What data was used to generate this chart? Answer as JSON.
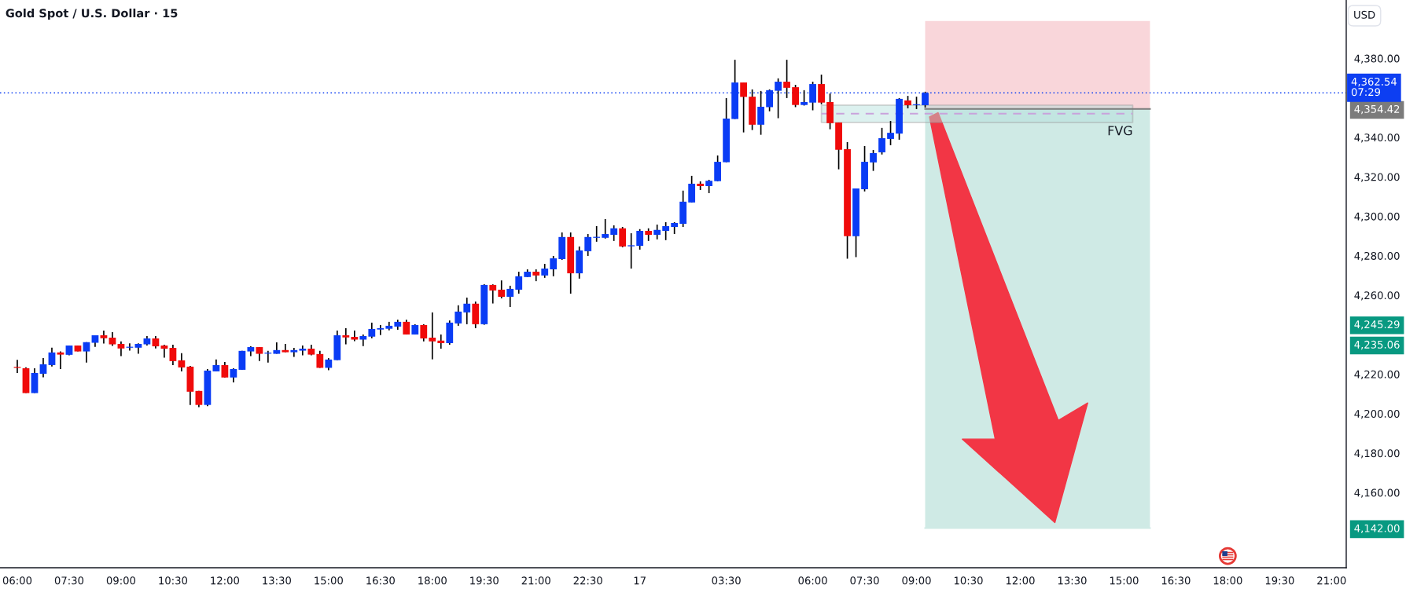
{
  "chart_data": {
    "type": "candlestick",
    "title": "Gold Spot / U.S. Dollar · 15",
    "ylabel": "USD",
    "categories": [
      "06:00",
      null,
      null,
      null,
      null,
      null,
      "07:30",
      null,
      null,
      null,
      null,
      null,
      "09:00",
      null,
      null,
      null,
      null,
      null,
      "10:30",
      null,
      null,
      null,
      null,
      null,
      "12:00",
      null,
      null,
      null,
      null,
      null,
      "13:30",
      null,
      null,
      null,
      null,
      null,
      "15:00",
      null,
      null,
      null,
      null,
      null,
      "16:30",
      null,
      null,
      null,
      null,
      null,
      "18:00",
      null,
      null,
      null,
      null,
      null,
      "19:30",
      null,
      null,
      null,
      null,
      null,
      "21:00",
      null,
      null,
      null,
      null,
      null,
      "22:30",
      null,
      null,
      null,
      null,
      null,
      "17",
      null,
      null,
      null,
      null,
      null,
      null,
      null,
      null,
      null,
      "03:30",
      null,
      null,
      null,
      null,
      null,
      null,
      null,
      null,
      null,
      "06:00",
      null,
      null,
      null,
      null,
      null,
      "07:30",
      null,
      null,
      null,
      null,
      null,
      "09:00",
      null,
      null,
      null,
      null,
      null,
      "10:30",
      null,
      null,
      null,
      null,
      null,
      "12:00",
      null,
      null,
      null,
      null,
      null,
      "13:30",
      null,
      null,
      null,
      null,
      null,
      "15:00",
      null,
      null,
      null,
      null,
      null,
      "16:30",
      null,
      null,
      null,
      null,
      null,
      "18:00",
      null,
      null,
      null,
      null,
      null,
      "19:30",
      null,
      null,
      null,
      null,
      null,
      "21:00",
      null
    ],
    "ohlc": [
      [
        4223.4,
        4227.3,
        4220.6,
        4223.2
      ],
      [
        4223.0,
        4223.5,
        4210.4,
        4210.4
      ],
      [
        4210.4,
        4223.0,
        4210.4,
        4220.6
      ],
      [
        4220.2,
        4228.1,
        4218.4,
        4225.0
      ],
      [
        4224.6,
        4233.4,
        4223.9,
        4231.0
      ],
      [
        4231.0,
        4231.5,
        4222.6,
        4229.9
      ],
      [
        4229.8,
        4234.5,
        4229.5,
        4234.5
      ],
      [
        4234.5,
        4234.5,
        4231.5,
        4231.5
      ],
      [
        4231.5,
        4236.2,
        4225.9,
        4236.2
      ],
      [
        4235.9,
        4239.7,
        4233.8,
        4239.7
      ],
      [
        4239.7,
        4242.1,
        4235.5,
        4238.2
      ],
      [
        4238.5,
        4241.3,
        4234.3,
        4235.1
      ],
      [
        4235.3,
        4236.6,
        4229.1,
        4233.0
      ],
      [
        4233.4,
        4235.6,
        4231.9,
        4233.7
      ],
      [
        4233.4,
        4235.6,
        4230.3,
        4235.3
      ],
      [
        4235.1,
        4239.3,
        4234.5,
        4238.1
      ],
      [
        4238.1,
        4239.3,
        4233.0,
        4234.1
      ],
      [
        4234.5,
        4234.9,
        4228.3,
        4232.9
      ],
      [
        4233.3,
        4234.9,
        4224.6,
        4226.6
      ],
      [
        4227.0,
        4230.6,
        4221.4,
        4223.4
      ],
      [
        4223.8,
        4224.2,
        4204.4,
        4211.1
      ],
      [
        4211.5,
        4211.5,
        4203.3,
        4204.4
      ],
      [
        4204.4,
        4222.6,
        4203.8,
        4221.8
      ],
      [
        4221.4,
        4227.4,
        4221.4,
        4224.6
      ],
      [
        4224.6,
        4226.2,
        4218.3,
        4218.3
      ],
      [
        4218.3,
        4223.0,
        4215.8,
        4222.6
      ],
      [
        4222.2,
        4231.8,
        4222.2,
        4231.8
      ],
      [
        4231.5,
        4234.1,
        4229.1,
        4233.7
      ],
      [
        4233.7,
        4233.7,
        4226.7,
        4230.3
      ],
      [
        4230.4,
        4231.8,
        4225.9,
        4230.7
      ],
      [
        4230.3,
        4236.1,
        4230.3,
        4232.2
      ],
      [
        4232.2,
        4235.3,
        4231.1,
        4231.1
      ],
      [
        4231.1,
        4233.3,
        4228.7,
        4232.2
      ],
      [
        4231.9,
        4234.5,
        4229.5,
        4232.9
      ],
      [
        4232.9,
        4234.9,
        4229.5,
        4229.9
      ],
      [
        4230.2,
        4231.8,
        4223.2,
        4223.2
      ],
      [
        4223.2,
        4228.1,
        4222.0,
        4227.4
      ],
      [
        4227.1,
        4242.1,
        4227.1,
        4239.7
      ],
      [
        4239.7,
        4243.3,
        4235.1,
        4238.6
      ],
      [
        4238.9,
        4242.1,
        4236.7,
        4237.5
      ],
      [
        4237.5,
        4240.1,
        4234.2,
        4239.3
      ],
      [
        4239.0,
        4246.1,
        4238.2,
        4242.9
      ],
      [
        4242.6,
        4244.9,
        4239.8,
        4243.3
      ],
      [
        4243.0,
        4246.5,
        4242.2,
        4244.5
      ],
      [
        4244.1,
        4247.6,
        4242.5,
        4246.5
      ],
      [
        4246.5,
        4247.6,
        4240.1,
        4240.1
      ],
      [
        4240.1,
        4245.3,
        4240.1,
        4244.9
      ],
      [
        4244.9,
        4245.3,
        4236.6,
        4238.1
      ],
      [
        4238.5,
        4251.3,
        4227.5,
        4236.6
      ],
      [
        4237.0,
        4240.1,
        4232.9,
        4235.7
      ],
      [
        4235.7,
        4247.2,
        4234.9,
        4246.1
      ],
      [
        4245.7,
        4254.9,
        4244.5,
        4251.7
      ],
      [
        4251.3,
        4258.8,
        4245.3,
        4255.7
      ],
      [
        4255.7,
        4256.8,
        4243.3,
        4245.3
      ],
      [
        4245.3,
        4265.6,
        4245.0,
        4265.2
      ],
      [
        4265.2,
        4265.5,
        4255.8,
        4262.4
      ],
      [
        4262.8,
        4267.5,
        4258.4,
        4259.2
      ],
      [
        4259.2,
        4264.8,
        4254.0,
        4263.2
      ],
      [
        4262.8,
        4271.9,
        4260.8,
        4269.6
      ],
      [
        4269.2,
        4273.1,
        4269.2,
        4271.9
      ],
      [
        4271.9,
        4273.1,
        4267.1,
        4270.0
      ],
      [
        4270.0,
        4275.9,
        4268.8,
        4273.5
      ],
      [
        4273.1,
        4279.9,
        4269.6,
        4278.7
      ],
      [
        4278.3,
        4291.8,
        4277.9,
        4289.5
      ],
      [
        4289.5,
        4291.8,
        4260.8,
        4271.1
      ],
      [
        4271.1,
        4284.7,
        4268.4,
        4282.7
      ],
      [
        4282.3,
        4291.0,
        4279.9,
        4289.5
      ],
      [
        4289.1,
        4295.0,
        4287.1,
        4289.5
      ],
      [
        4289.1,
        4298.6,
        4288.7,
        4291.0
      ],
      [
        4290.6,
        4295.4,
        4287.5,
        4293.9
      ],
      [
        4293.9,
        4294.6,
        4284.3,
        4284.7
      ],
      [
        4284.8,
        4291.4,
        4273.5,
        4285.3
      ],
      [
        4285.0,
        4293.5,
        4283.1,
        4292.6
      ],
      [
        4292.6,
        4293.9,
        4287.5,
        4290.6
      ],
      [
        4290.6,
        4295.8,
        4288.3,
        4293.1
      ],
      [
        4292.6,
        4297.0,
        4287.9,
        4295.0
      ],
      [
        4294.6,
        4297.0,
        4291.0,
        4296.6
      ],
      [
        4296.2,
        4313.0,
        4294.6,
        4307.4
      ],
      [
        4307.0,
        4320.5,
        4307.0,
        4316.5
      ],
      [
        4316.5,
        4317.7,
        4313.3,
        4315.3
      ],
      [
        4315.3,
        4318.5,
        4311.7,
        4318.0
      ],
      [
        4317.8,
        4330.8,
        4317.7,
        4327.6
      ],
      [
        4327.4,
        4359.9,
        4327.4,
        4349.5
      ],
      [
        4349.3,
        4379.3,
        4349.3,
        4367.8
      ],
      [
        4367.8,
        4367.8,
        4342.5,
        4360.5
      ],
      [
        4360.6,
        4364.3,
        4343.7,
        4346.4
      ],
      [
        4346.4,
        4363.5,
        4341.3,
        4355.5
      ],
      [
        4355.3,
        4364.3,
        4353.2,
        4363.9
      ],
      [
        4363.6,
        4369.9,
        4349.7,
        4368.2
      ],
      [
        4368.2,
        4379.3,
        4359.9,
        4365.1
      ],
      [
        4365.4,
        4366.6,
        4355.3,
        4356.4
      ],
      [
        4356.4,
        4363.9,
        4356.1,
        4357.9
      ],
      [
        4357.6,
        4368.2,
        4353.7,
        4367.0
      ],
      [
        4367.0,
        4371.8,
        4356.8,
        4357.6
      ],
      [
        4357.9,
        4362.2,
        4344.1,
        4347.2
      ],
      [
        4347.5,
        4347.5,
        4323.8,
        4333.7
      ],
      [
        4334.0,
        4337.6,
        4278.5,
        4289.9
      ],
      [
        4289.9,
        4314.1,
        4279.3,
        4314.1
      ],
      [
        4313.7,
        4335.6,
        4312.6,
        4327.6
      ],
      [
        4327.3,
        4333.6,
        4323.0,
        4332.0
      ],
      [
        4332.4,
        4344.8,
        4331.3,
        4339.6
      ],
      [
        4339.2,
        4348.3,
        4336.0,
        4342.3
      ],
      [
        4341.9,
        4359.9,
        4338.8,
        4359.5
      ],
      [
        4358.7,
        4361.0,
        4354.7,
        4356.3
      ],
      [
        4356.3,
        4360.6,
        4354.3,
        4356.7
      ],
      [
        4356.3,
        4363.1,
        4355.1,
        4362.54
      ],
      null,
      null,
      null,
      null,
      null,
      null,
      null,
      null,
      null,
      null,
      null,
      null,
      null,
      null,
      null,
      null,
      null,
      null,
      null,
      null,
      null,
      null,
      null,
      null,
      null,
      null,
      null,
      null,
      null,
      null,
      null,
      null,
      null,
      null,
      null,
      null,
      null,
      null,
      null,
      null,
      null,
      null,
      null,
      null,
      null,
      null,
      null,
      null
    ],
    "colors": [
      "#f00a0a",
      "#f00a0a",
      "#0a3cf5",
      "#0a3cf5",
      "#0a3cf5",
      "#f00a0a",
      "#0a3cf5",
      "#f00a0a",
      "#0a3cf5",
      "#0a3cf5",
      "#f00a0a",
      "#f00a0a",
      "#f00a0a",
      "#0a3cf5",
      "#0a3cf5",
      "#0a3cf5",
      "#f00a0a",
      "#f00a0a",
      "#f00a0a",
      "#f00a0a",
      "#f00a0a",
      "#f00a0a",
      "#0a3cf5",
      "#0a3cf5",
      "#f00a0a",
      "#0a3cf5",
      "#0a3cf5",
      "#0a3cf5",
      "#f00a0a",
      "#0a3cf5",
      "#0a3cf5",
      "#f00a0a",
      "#0a3cf5",
      "#0a3cf5",
      "#f00a0a",
      "#f00a0a",
      "#0a3cf5",
      "#0a3cf5",
      "#f00a0a",
      "#f00a0a",
      "#0a3cf5",
      "#0a3cf5",
      "#0a3cf5",
      "#0a3cf5",
      "#0a3cf5",
      "#f00a0a",
      "#0a3cf5",
      "#f00a0a",
      "#f00a0a",
      "#f00a0a",
      "#0a3cf5",
      "#0a3cf5",
      "#0a3cf5",
      "#f00a0a",
      "#0a3cf5",
      "#f00a0a",
      "#f00a0a",
      "#0a3cf5",
      "#0a3cf5",
      "#0a3cf5",
      "#f00a0a",
      "#0a3cf5",
      "#0a3cf5",
      "#0a3cf5",
      "#f00a0a",
      "#0a3cf5",
      "#0a3cf5",
      "#0a3cf5",
      "#0a3cf5",
      "#0a3cf5",
      "#f00a0a",
      "#0a3cf5",
      "#0a3cf5",
      "#f00a0a",
      "#0a3cf5",
      "#0a3cf5",
      "#0a3cf5",
      "#0a3cf5",
      "#0a3cf5",
      "#f00a0a",
      "#0a3cf5",
      "#0a3cf5",
      "#0a3cf5",
      "#0a3cf5",
      "#f00a0a",
      "#f00a0a",
      "#0a3cf5",
      "#0a3cf5",
      "#0a3cf5",
      "#f00a0a",
      "#f00a0a",
      "#0a3cf5",
      "#0a3cf5",
      "#f00a0a",
      "#f00a0a",
      "#f00a0a",
      "#f00a0a",
      "#0a3cf5",
      "#0a3cf5",
      "#0a3cf5",
      "#0a3cf5",
      "#0a3cf5",
      "#0a3cf5",
      "#f00a0a",
      "#0a3cf5",
      "#0a3cf5",
      null,
      null,
      null,
      null,
      null,
      null,
      null,
      null,
      null,
      null,
      null,
      null,
      null,
      null,
      null,
      null,
      null,
      null,
      null,
      null,
      null,
      null,
      null,
      null,
      null,
      null,
      null,
      null,
      null,
      null,
      null,
      null,
      null,
      null,
      null,
      null,
      null,
      null,
      null,
      null,
      null,
      null,
      null,
      null,
      null,
      null,
      null,
      null
    ],
    "series": [
      {
        "type": "line",
        "color": "#7b7b7b",
        "line_style": "solid",
        "values": [
          null,
          null,
          null,
          null,
          null,
          null,
          null,
          null,
          null,
          null,
          null,
          null,
          null,
          null,
          null,
          null,
          null,
          null,
          null,
          null,
          null,
          null,
          null,
          null,
          null,
          null,
          null,
          null,
          null,
          null,
          null,
          null,
          null,
          null,
          null,
          null,
          null,
          null,
          null,
          null,
          null,
          null,
          null,
          null,
          null,
          null,
          null,
          null,
          null,
          null,
          null,
          null,
          null,
          null,
          null,
          null,
          null,
          null,
          null,
          null,
          null,
          null,
          null,
          null,
          null,
          null,
          null,
          null,
          null,
          null,
          null,
          null,
          null,
          null,
          null,
          null,
          null,
          null,
          null,
          null,
          null,
          null,
          null,
          null,
          null,
          null,
          null,
          null,
          null,
          null,
          null,
          null,
          null,
          null,
          null,
          null,
          null,
          null,
          null,
          null,
          null,
          null,
          null,
          null,
          null,
          4354.42,
          4354.42,
          4354.42,
          4354.42,
          4354.42,
          4354.42,
          4354.42,
          4354.42,
          4354.42,
          4354.42,
          4354.42,
          4354.42,
          4354.42,
          4354.42,
          4354.42,
          4354.42,
          4354.42,
          4354.42,
          4354.42,
          4354.42,
          4354.42,
          4354.42,
          4354.42,
          4354.42,
          4354.42,
          4354.42,
          4354.42,
          null,
          null,
          null,
          null,
          null,
          null,
          null,
          null,
          null,
          null,
          null,
          null,
          null,
          null,
          null,
          null,
          null,
          null,
          null,
          null,
          null,
          null
        ],
        "upper": [
          null,
          null,
          null,
          null,
          null,
          null,
          null,
          null,
          null,
          null,
          null,
          null,
          null,
          null,
          null,
          null,
          null,
          null,
          null,
          null,
          null,
          null,
          null,
          null,
          null,
          null,
          null,
          null,
          null,
          null,
          null,
          null,
          null,
          null,
          null,
          null,
          null,
          null,
          null,
          null,
          null,
          null,
          null,
          null,
          null,
          null,
          null,
          null,
          null,
          null,
          null,
          null,
          null,
          null,
          null,
          null,
          null,
          null,
          null,
          null,
          null,
          null,
          null,
          null,
          null,
          null,
          null,
          null,
          null,
          null,
          null,
          null,
          null,
          null,
          null,
          null,
          null,
          null,
          null,
          null,
          null,
          null,
          null,
          null,
          null,
          null,
          null,
          null,
          null,
          null,
          null,
          null,
          null,
          null,
          null,
          null,
          null,
          null,
          null,
          null,
          null,
          null,
          null,
          null,
          null,
          4399,
          4399,
          4399,
          4399,
          4399,
          4399,
          4399,
          4399,
          4399,
          4399,
          4399,
          4399,
          4399,
          4399,
          4399,
          4399,
          4399,
          4399,
          4399,
          4399,
          4399,
          4399,
          4399,
          4399,
          4399,
          4399,
          4399,
          null,
          null,
          null,
          null,
          null,
          null,
          null,
          null,
          null,
          null,
          null,
          null,
          null,
          null,
          null,
          null,
          null,
          null,
          null,
          null,
          null,
          null
        ],
        "lower": [
          null,
          null,
          null,
          null,
          null,
          null,
          null,
          null,
          null,
          null,
          null,
          null,
          null,
          null,
          null,
          null,
          null,
          null,
          null,
          null,
          null,
          null,
          null,
          null,
          null,
          null,
          null,
          null,
          null,
          null,
          null,
          null,
          null,
          null,
          null,
          null,
          null,
          null,
          null,
          null,
          null,
          null,
          null,
          null,
          null,
          null,
          null,
          null,
          null,
          null,
          null,
          null,
          null,
          null,
          null,
          null,
          null,
          null,
          null,
          null,
          null,
          null,
          null,
          null,
          null,
          null,
          null,
          null,
          null,
          null,
          null,
          null,
          null,
          null,
          null,
          null,
          null,
          null,
          null,
          null,
          null,
          null,
          null,
          null,
          null,
          null,
          null,
          null,
          null,
          null,
          null,
          null,
          null,
          null,
          null,
          null,
          null,
          null,
          null,
          null,
          null,
          null,
          null,
          null,
          null,
          4354.42,
          4354.42,
          4354.42,
          4354.42,
          4354.42,
          4354.42,
          4354.42,
          4354.42,
          4354.42,
          4354.42,
          4354.42,
          4354.42,
          4354.42,
          4354.42,
          4354.42,
          4354.42,
          4354.42,
          4354.42,
          4354.42,
          4354.42,
          4354.42,
          4354.42,
          4354.42,
          4354.42,
          4354.42,
          4354.42,
          4354.42,
          null,
          null,
          null,
          null,
          null,
          null,
          null,
          null,
          null,
          null,
          null,
          null,
          null,
          null,
          null,
          null,
          null,
          null,
          null,
          null,
          null,
          null
        ]
      },
      {
        "type": "line",
        "color": "#cfeae5",
        "line_style": "solid",
        "values": [
          null,
          null,
          null,
          null,
          null,
          null,
          null,
          null,
          null,
          null,
          null,
          null,
          null,
          null,
          null,
          null,
          null,
          null,
          null,
          null,
          null,
          null,
          null,
          null,
          null,
          null,
          null,
          null,
          null,
          null,
          null,
          null,
          null,
          null,
          null,
          null,
          null,
          null,
          null,
          null,
          null,
          null,
          null,
          null,
          null,
          null,
          null,
          null,
          null,
          null,
          null,
          null,
          null,
          null,
          null,
          null,
          null,
          null,
          null,
          null,
          null,
          null,
          null,
          null,
          null,
          null,
          null,
          null,
          null,
          null,
          null,
          null,
          null,
          null,
          null,
          null,
          null,
          null,
          null,
          null,
          null,
          null,
          null,
          null,
          null,
          null,
          null,
          null,
          null,
          null,
          null,
          null,
          null,
          null,
          null,
          null,
          null,
          null,
          null,
          null,
          null,
          null,
          null,
          null,
          null,
          4142,
          4142,
          4142,
          4142,
          4142,
          4142,
          4142,
          4142,
          4142,
          4142,
          4142,
          4142,
          4142,
          4142,
          4142,
          4142,
          4142,
          4142,
          4142,
          4142,
          4142,
          4142,
          4142,
          4142,
          4142,
          4142,
          4142,
          null,
          null,
          null,
          null,
          null,
          null,
          null,
          null,
          null,
          null,
          null,
          null,
          null,
          null,
          null,
          null,
          null,
          null,
          null,
          null,
          null,
          null
        ],
        "upper": [
          null,
          null,
          null,
          null,
          null,
          null,
          null,
          null,
          null,
          null,
          null,
          null,
          null,
          null,
          null,
          null,
          null,
          null,
          null,
          null,
          null,
          null,
          null,
          null,
          null,
          null,
          null,
          null,
          null,
          null,
          null,
          null,
          null,
          null,
          null,
          null,
          null,
          null,
          null,
          null,
          null,
          null,
          null,
          null,
          null,
          null,
          null,
          null,
          null,
          null,
          null,
          null,
          null,
          null,
          null,
          null,
          null,
          null,
          null,
          null,
          null,
          null,
          null,
          null,
          null,
          null,
          null,
          null,
          null,
          null,
          null,
          null,
          null,
          null,
          null,
          null,
          null,
          null,
          null,
          null,
          null,
          null,
          null,
          null,
          null,
          null,
          null,
          null,
          null,
          null,
          null,
          null,
          null,
          null,
          null,
          null,
          null,
          null,
          null,
          null,
          null,
          null,
          null,
          null,
          null,
          4354.42,
          4354.42,
          4354.42,
          4354.42,
          4354.42,
          4354.42,
          4354.42,
          4354.42,
          4354.42,
          4354.42,
          4354.42,
          4354.42,
          4354.42,
          4354.42,
          4354.42,
          4354.42,
          4354.42,
          4354.42,
          4354.42,
          4354.42,
          4354.42,
          4354.42,
          4354.42,
          4354.42,
          4354.42,
          4354.42,
          4354.42,
          null,
          null,
          null,
          null,
          null,
          null,
          null,
          null,
          null,
          null,
          null,
          null,
          null,
          null,
          null,
          null,
          null,
          null,
          null,
          null,
          null,
          null
        ],
        "lower": [
          null,
          null,
          null,
          null,
          null,
          null,
          null,
          null,
          null,
          null,
          null,
          null,
          null,
          null,
          null,
          null,
          null,
          null,
          null,
          null,
          null,
          null,
          null,
          null,
          null,
          null,
          null,
          null,
          null,
          null,
          null,
          null,
          null,
          null,
          null,
          null,
          null,
          null,
          null,
          null,
          null,
          null,
          null,
          null,
          null,
          null,
          null,
          null,
          null,
          null,
          null,
          null,
          null,
          null,
          null,
          null,
          null,
          null,
          null,
          null,
          null,
          null,
          null,
          null,
          null,
          null,
          null,
          null,
          null,
          null,
          null,
          null,
          null,
          null,
          null,
          null,
          null,
          null,
          null,
          null,
          null,
          null,
          null,
          null,
          null,
          null,
          null,
          null,
          null,
          null,
          null,
          null,
          null,
          null,
          null,
          null,
          null,
          null,
          null,
          null,
          null,
          null,
          null,
          null,
          null,
          4142,
          4142,
          4142,
          4142,
          4142,
          4142,
          4142,
          4142,
          4142,
          4142,
          4142,
          4142,
          4142,
          4142,
          4142,
          4142,
          4142,
          4142,
          4142,
          4142,
          4142,
          4142,
          4142,
          4142,
          4142,
          4142,
          4142,
          null,
          null,
          null,
          null,
          null,
          null,
          null,
          null,
          null,
          null,
          null,
          null,
          null,
          null,
          null,
          null,
          null,
          null,
          null,
          null,
          null,
          null
        ]
      },
      {
        "type": "line",
        "color": "#c9a3dc",
        "line_style": "dashed",
        "values": [
          null,
          null,
          null,
          null,
          null,
          null,
          null,
          null,
          null,
          null,
          null,
          null,
          null,
          null,
          null,
          null,
          null,
          null,
          null,
          null,
          null,
          null,
          null,
          null,
          null,
          null,
          null,
          null,
          null,
          null,
          null,
          null,
          null,
          null,
          null,
          null,
          null,
          null,
          null,
          null,
          null,
          null,
          null,
          null,
          null,
          null,
          null,
          null,
          null,
          null,
          null,
          null,
          null,
          null,
          null,
          null,
          null,
          null,
          null,
          null,
          null,
          null,
          null,
          null,
          null,
          null,
          null,
          null,
          null,
          null,
          null,
          null,
          null,
          null,
          null,
          null,
          null,
          null,
          null,
          null,
          null,
          null,
          null,
          null,
          null,
          null,
          null,
          null,
          null,
          null,
          null,
          null,
          null,
          4352.0,
          4352.0,
          4352.0,
          4352.0,
          4352.0,
          4352.0,
          4352.0,
          4352.0,
          4352.0,
          null,
          4352.0,
          4352.0,
          4352.0,
          4352.0,
          4352.0,
          4352.0,
          4352.0,
          4352.0,
          4352.0,
          4352.0,
          4352.0,
          4352.0,
          4352.0,
          4352.0,
          4352.0,
          4352.0,
          4352.0,
          4352.0,
          4352.0,
          4352.0,
          4352.0,
          4352.0,
          4352.0,
          4352.0,
          4352.0,
          4352.0,
          4352.0,
          null,
          null,
          null,
          null,
          null,
          null,
          null,
          null,
          null,
          null,
          null,
          null,
          null,
          null,
          null,
          null,
          null,
          null,
          null,
          null,
          null,
          null,
          null,
          null
        ],
        "upper": [
          null,
          null,
          null,
          null,
          null,
          null,
          null,
          null,
          null,
          null,
          null,
          null,
          null,
          null,
          null,
          null,
          null,
          null,
          null,
          null,
          null,
          null,
          null,
          null,
          null,
          null,
          null,
          null,
          null,
          null,
          null,
          null,
          null,
          null,
          null,
          null,
          null,
          null,
          null,
          null,
          null,
          null,
          null,
          null,
          null,
          null,
          null,
          null,
          null,
          null,
          null,
          null,
          null,
          null,
          null,
          null,
          null,
          null,
          null,
          null,
          null,
          null,
          null,
          null,
          null,
          null,
          null,
          null,
          null,
          null,
          null,
          null,
          null,
          null,
          null,
          null,
          null,
          null,
          null,
          null,
          null,
          null,
          null,
          null,
          null,
          null,
          null,
          null,
          null,
          null,
          null,
          null,
          null,
          4356.3,
          4356.3,
          4356.3,
          4356.3,
          4356.3,
          4356.3,
          4356.3,
          4356.3,
          4356.3,
          4356.3,
          4356.3,
          4356.3,
          4356.3,
          4356.3,
          4356.3,
          4356.3,
          4356.3,
          4356.3,
          4356.3,
          4356.3,
          4356.3,
          4356.3,
          4356.3,
          4356.3,
          4356.3,
          4356.3,
          4356.3,
          4356.3,
          4356.3,
          4356.3,
          4356.3,
          4356.3,
          4356.3,
          4356.3,
          4356.3,
          4356.3,
          4356.3,
          null,
          null,
          null,
          null,
          null,
          null,
          null,
          null,
          null,
          null,
          null,
          null,
          null,
          null,
          null,
          null,
          null,
          null,
          null,
          null,
          null,
          null,
          null,
          null
        ],
        "lower": [
          null,
          null,
          null,
          null,
          null,
          null,
          null,
          null,
          null,
          null,
          null,
          null,
          null,
          null,
          null,
          null,
          null,
          null,
          null,
          null,
          null,
          null,
          null,
          null,
          null,
          null,
          null,
          null,
          null,
          null,
          null,
          null,
          null,
          null,
          null,
          null,
          null,
          null,
          null,
          null,
          null,
          null,
          null,
          null,
          null,
          null,
          null,
          null,
          null,
          null,
          null,
          null,
          null,
          null,
          null,
          null,
          null,
          null,
          null,
          null,
          null,
          null,
          null,
          null,
          null,
          null,
          null,
          null,
          null,
          null,
          null,
          null,
          null,
          null,
          null,
          null,
          null,
          null,
          null,
          null,
          null,
          null,
          null,
          null,
          null,
          null,
          null,
          null,
          null,
          null,
          null,
          null,
          null,
          4347.6,
          4347.6,
          4347.6,
          4347.6,
          4347.6,
          4347.6,
          4347.6,
          4347.6,
          4347.6,
          4347.6,
          4347.6,
          4347.6,
          4347.6,
          4347.6,
          4347.6,
          4347.6,
          4347.6,
          4347.6,
          4347.6,
          4347.6,
          4347.6,
          4347.6,
          4347.6,
          4347.6,
          4347.6,
          4347.6,
          4347.6,
          4347.6,
          4347.6,
          4347.6,
          4347.6,
          4347.6,
          4347.6,
          4347.6,
          4347.6,
          4347.6,
          4347.6,
          null,
          null,
          null,
          null,
          null,
          null,
          null,
          null,
          null,
          null,
          null,
          null,
          null,
          null,
          null,
          null,
          null,
          null,
          null,
          null,
          null,
          null,
          null,
          null
        ]
      }
    ],
    "ylim": [
      4121.9,
      4409.6
    ],
    "yticks": [
      {
        "value": 4142,
        "label": "4,142.00"
      },
      {
        "value": 4160,
        "label": "4,160.00"
      },
      {
        "value": 4180,
        "label": "4,180.00"
      },
      {
        "value": 4200,
        "label": "4,200.00"
      },
      {
        "value": 4220,
        "label": "4,220.00"
      },
      {
        "value": 4235.06,
        "label": "4,235.06"
      },
      {
        "value": 4245.29,
        "label": "4,245.29"
      },
      {
        "value": 4260,
        "label": "4,260.00"
      },
      {
        "value": 4280,
        "label": "4,280.00"
      },
      {
        "value": 4300,
        "label": "4,300.00"
      },
      {
        "value": 4320,
        "label": "4,320.00"
      },
      {
        "value": 4340,
        "label": "4,340.00"
      },
      {
        "value": 4354.42,
        "label": "4,354.42"
      },
      {
        "value": 4380,
        "label": "4,380.00"
      }
    ],
    "ref_lines": [
      {
        "axis": "y",
        "value": 4362.54,
        "label": "4,362.54\n07:29",
        "color": "#0d3ef2",
        "line_style": "dotted"
      }
    ],
    "annotations": [
      "FVG"
    ]
  }
}
